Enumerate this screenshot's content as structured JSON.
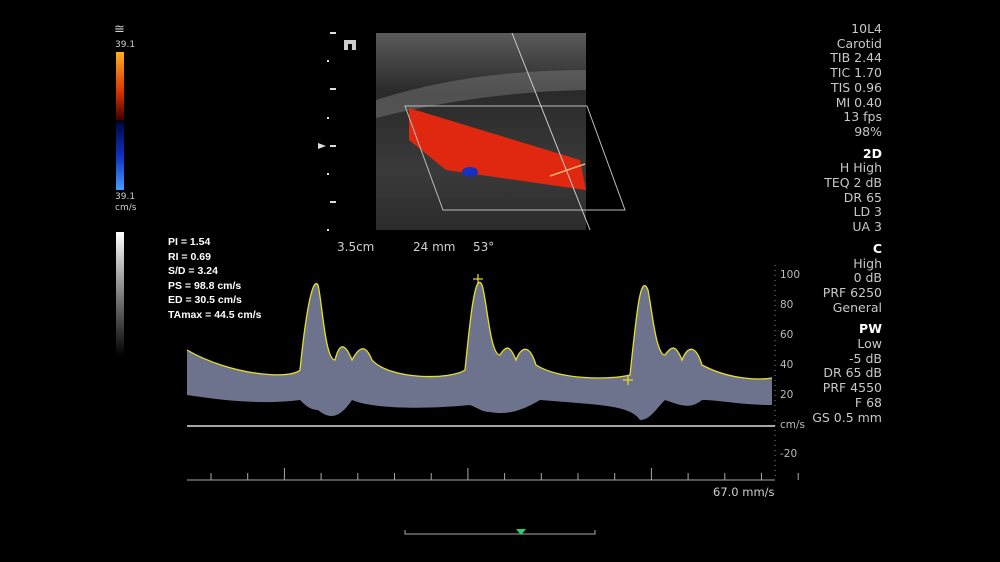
{
  "color_bar": {
    "symbol": "≅",
    "top": "39.1",
    "bottom": "39.1",
    "unit": "cm/s"
  },
  "image_panel": {
    "depth": "3.5cm",
    "gate": "24 mm",
    "angle": "53°"
  },
  "measurements": [
    "PI = 1.54",
    "RI = 0.69",
    "S/D = 3.24",
    "PS = 98.8 cm/s",
    "ED = 30.5 cm/s",
    "TAmax = 44.5 cm/s"
  ],
  "velocity_scale": [
    "100",
    "80",
    "60",
    "40",
    "20",
    "cm/s",
    "-20"
  ],
  "sweep_speed": "67.0 mm/s",
  "settings": [
    {
      "lines": [
        "10L4",
        "Carotid",
        "TIB 2.44",
        "TIC 1.70",
        "TIS 0.96",
        "MI 0.40",
        "13 fps",
        "98%"
      ]
    },
    {
      "title": "2D",
      "lines": [
        "H High",
        "TEQ 2 dB",
        "DR 65",
        "LD 3",
        "UA 3"
      ]
    },
    {
      "title": "C",
      "lines": [
        "High",
        "0 dB",
        "PRF 6250",
        "General"
      ]
    },
    {
      "title": "PW",
      "lines": [
        "Low",
        "-5 dB",
        "DR 65 dB",
        "PRF 4550",
        "F 68",
        "GS 0.5 mm"
      ]
    }
  ]
}
